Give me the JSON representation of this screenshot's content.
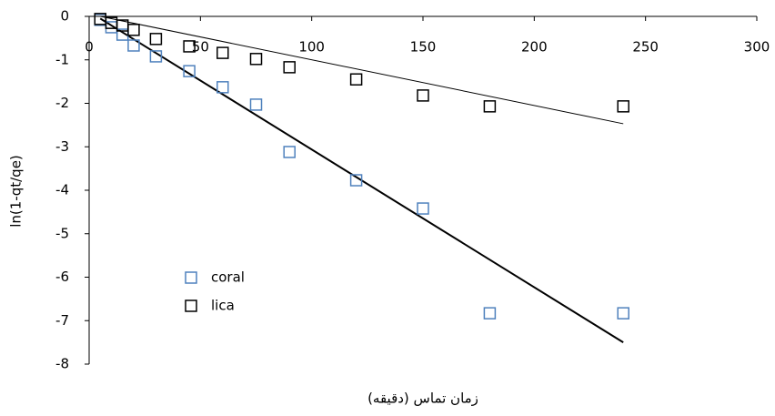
{
  "chart_data": {
    "type": "scatter",
    "x_label": "زمان تماس (دقیقه)",
    "y_label": "ln(1-qt/qe)",
    "xlim": [
      0,
      300
    ],
    "xticks": [
      0,
      50,
      100,
      150,
      200,
      250,
      300
    ],
    "ylim": [
      -8,
      0
    ],
    "yticks": [
      0,
      -1,
      -2,
      -3,
      -4,
      -5,
      -6,
      -7,
      -8
    ],
    "legend": "lower-left",
    "series": [
      {
        "name": "coral",
        "color": "#4f81bd",
        "x": [
          5,
          10,
          15,
          20,
          30,
          45,
          60,
          75,
          90,
          120,
          150,
          180,
          240
        ],
        "values": [
          -0.08,
          -0.25,
          -0.42,
          -0.67,
          -0.92,
          -1.26,
          -1.63,
          -2.03,
          -3.12,
          -3.77,
          -4.42,
          -6.83,
          -6.83
        ],
        "trendline": {
          "x": [
            5,
            240
          ],
          "values": [
            -0.05,
            -7.5
          ],
          "color": "#000000",
          "width": 2
        }
      },
      {
        "name": "lica",
        "color": "#000000",
        "x": [
          5,
          10,
          15,
          20,
          30,
          45,
          60,
          75,
          90,
          120,
          150,
          180,
          240
        ],
        "values": [
          -0.06,
          -0.15,
          -0.21,
          -0.31,
          -0.52,
          -0.69,
          -0.84,
          -0.98,
          -1.17,
          -1.45,
          -1.82,
          -2.07,
          -2.07
        ],
        "trendline": {
          "x": [
            5,
            240
          ],
          "values": [
            0,
            -2.47
          ],
          "color": "#000000",
          "width": 1
        }
      }
    ]
  }
}
